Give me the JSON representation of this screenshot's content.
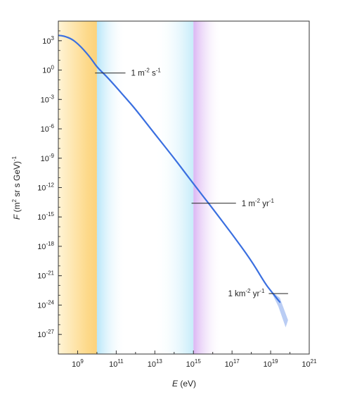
{
  "chart_data": {
    "type": "line",
    "title": "",
    "xlabel_var": "E",
    "xlabel_unit": " (eV)",
    "ylabel_var": "F",
    "ylabel_unit": " (m",
    "ylabel_unit_exp": "2",
    "ylabel_unit_rest": " sr s GeV)",
    "ylabel_unit_rest_exp": "-1",
    "x_scale": "log",
    "y_scale": "log",
    "xlim": [
      100000000.0,
      1e+21
    ],
    "ylim": [
      1e-29,
      100000.0
    ],
    "x_ticks": [
      {
        "base": "10",
        "exp": "9",
        "value": 1000000000.0
      },
      {
        "base": "10",
        "exp": "11",
        "value": 100000000000.0
      },
      {
        "base": "10",
        "exp": "13",
        "value": 10000000000000.0
      },
      {
        "base": "10",
        "exp": "15",
        "value": 1000000000000000.0
      },
      {
        "base": "10",
        "exp": "17",
        "value": 1e+17
      },
      {
        "base": "10",
        "exp": "19",
        "value": 1e+19
      },
      {
        "base": "10",
        "exp": "21",
        "value": 1e+21
      }
    ],
    "y_ticks": [
      {
        "base": "10",
        "exp": "3",
        "value": 1000.0
      },
      {
        "base": "10",
        "exp": "0",
        "value": 1.0
      },
      {
        "base": "10",
        "exp": "-3",
        "value": 0.001
      },
      {
        "base": "10",
        "exp": "-6",
        "value": 1e-06
      },
      {
        "base": "10",
        "exp": "-9",
        "value": 1e-09
      },
      {
        "base": "10",
        "exp": "-12",
        "value": 1e-12
      },
      {
        "base": "10",
        "exp": "-15",
        "value": 1e-15
      },
      {
        "base": "10",
        "exp": "-18",
        "value": 1e-18
      },
      {
        "base": "10",
        "exp": "-21",
        "value": 1e-21
      },
      {
        "base": "10",
        "exp": "-24",
        "value": 1e-24
      },
      {
        "base": "10",
        "exp": "-27",
        "value": 1e-27
      }
    ],
    "grid": false,
    "legend": "none",
    "series": [
      {
        "color": "#3a6fe0",
        "x": [
          100000000.0,
          200000000.0,
          500000000.0,
          1000000000.0,
          2000000000.0,
          5000000000.0,
          10000000000.0,
          30000000000.0,
          100000000000.0,
          300000000000.0,
          1000000000000.0,
          10000000000000.0,
          100000000000000.0,
          1000000000000000.0,
          3000000000000000.0,
          1e+16,
          1e+17,
          1e+18,
          5e+18,
          1e+19,
          3e+19
        ],
        "y": [
          3500.0,
          3000.0,
          1500.0,
          500.0,
          130.0,
          15.0,
          2,
          0.25,
          0.018,
          0.0015,
          0.0001,
          3e-07,
          1e-09,
          2.5e-12,
          1.5e-13,
          7e-15,
          1.8e-17,
          3.5e-20,
          1.8e-22,
          3e-23,
          2e-24
        ]
      }
    ],
    "band_colors": {
      "orange": "#fdd98a",
      "cyan": "#c6ecfa",
      "violet": "#e3c4f5"
    },
    "bands": [
      {
        "from": 100000000.0,
        "to": 10000000000.0,
        "color": "orange"
      },
      {
        "from": 10000000000.0,
        "to": 300000000000.0,
        "color": "cyan"
      },
      {
        "from": 10000000000000.0,
        "to": 1000000000000000.0,
        "color": "cyan"
      },
      {
        "from": 1000000000000000.0,
        "to": 3e+16,
        "color": "violet"
      }
    ],
    "annotations": [
      {
        "text": "1 m",
        "exp": "-2",
        "rest": " s",
        "rest_exp": "-1",
        "line_x": [
          8000000000.0,
          300000000000.0
        ],
        "line_y": 0.5
      },
      {
        "text": "1 m",
        "exp": "-2",
        "rest": " yr",
        "rest_exp": "-1",
        "line_x": [
          800000000000000.0,
          1.6e+17
        ],
        "line_y": 2.5e-14
      },
      {
        "text": "1 km",
        "exp": "-2",
        "rest": " yr",
        "rest_exp": "-1",
        "line_x": [
          8e+18,
          8e+19
        ],
        "line_y": 1.5e-23
      }
    ]
  }
}
